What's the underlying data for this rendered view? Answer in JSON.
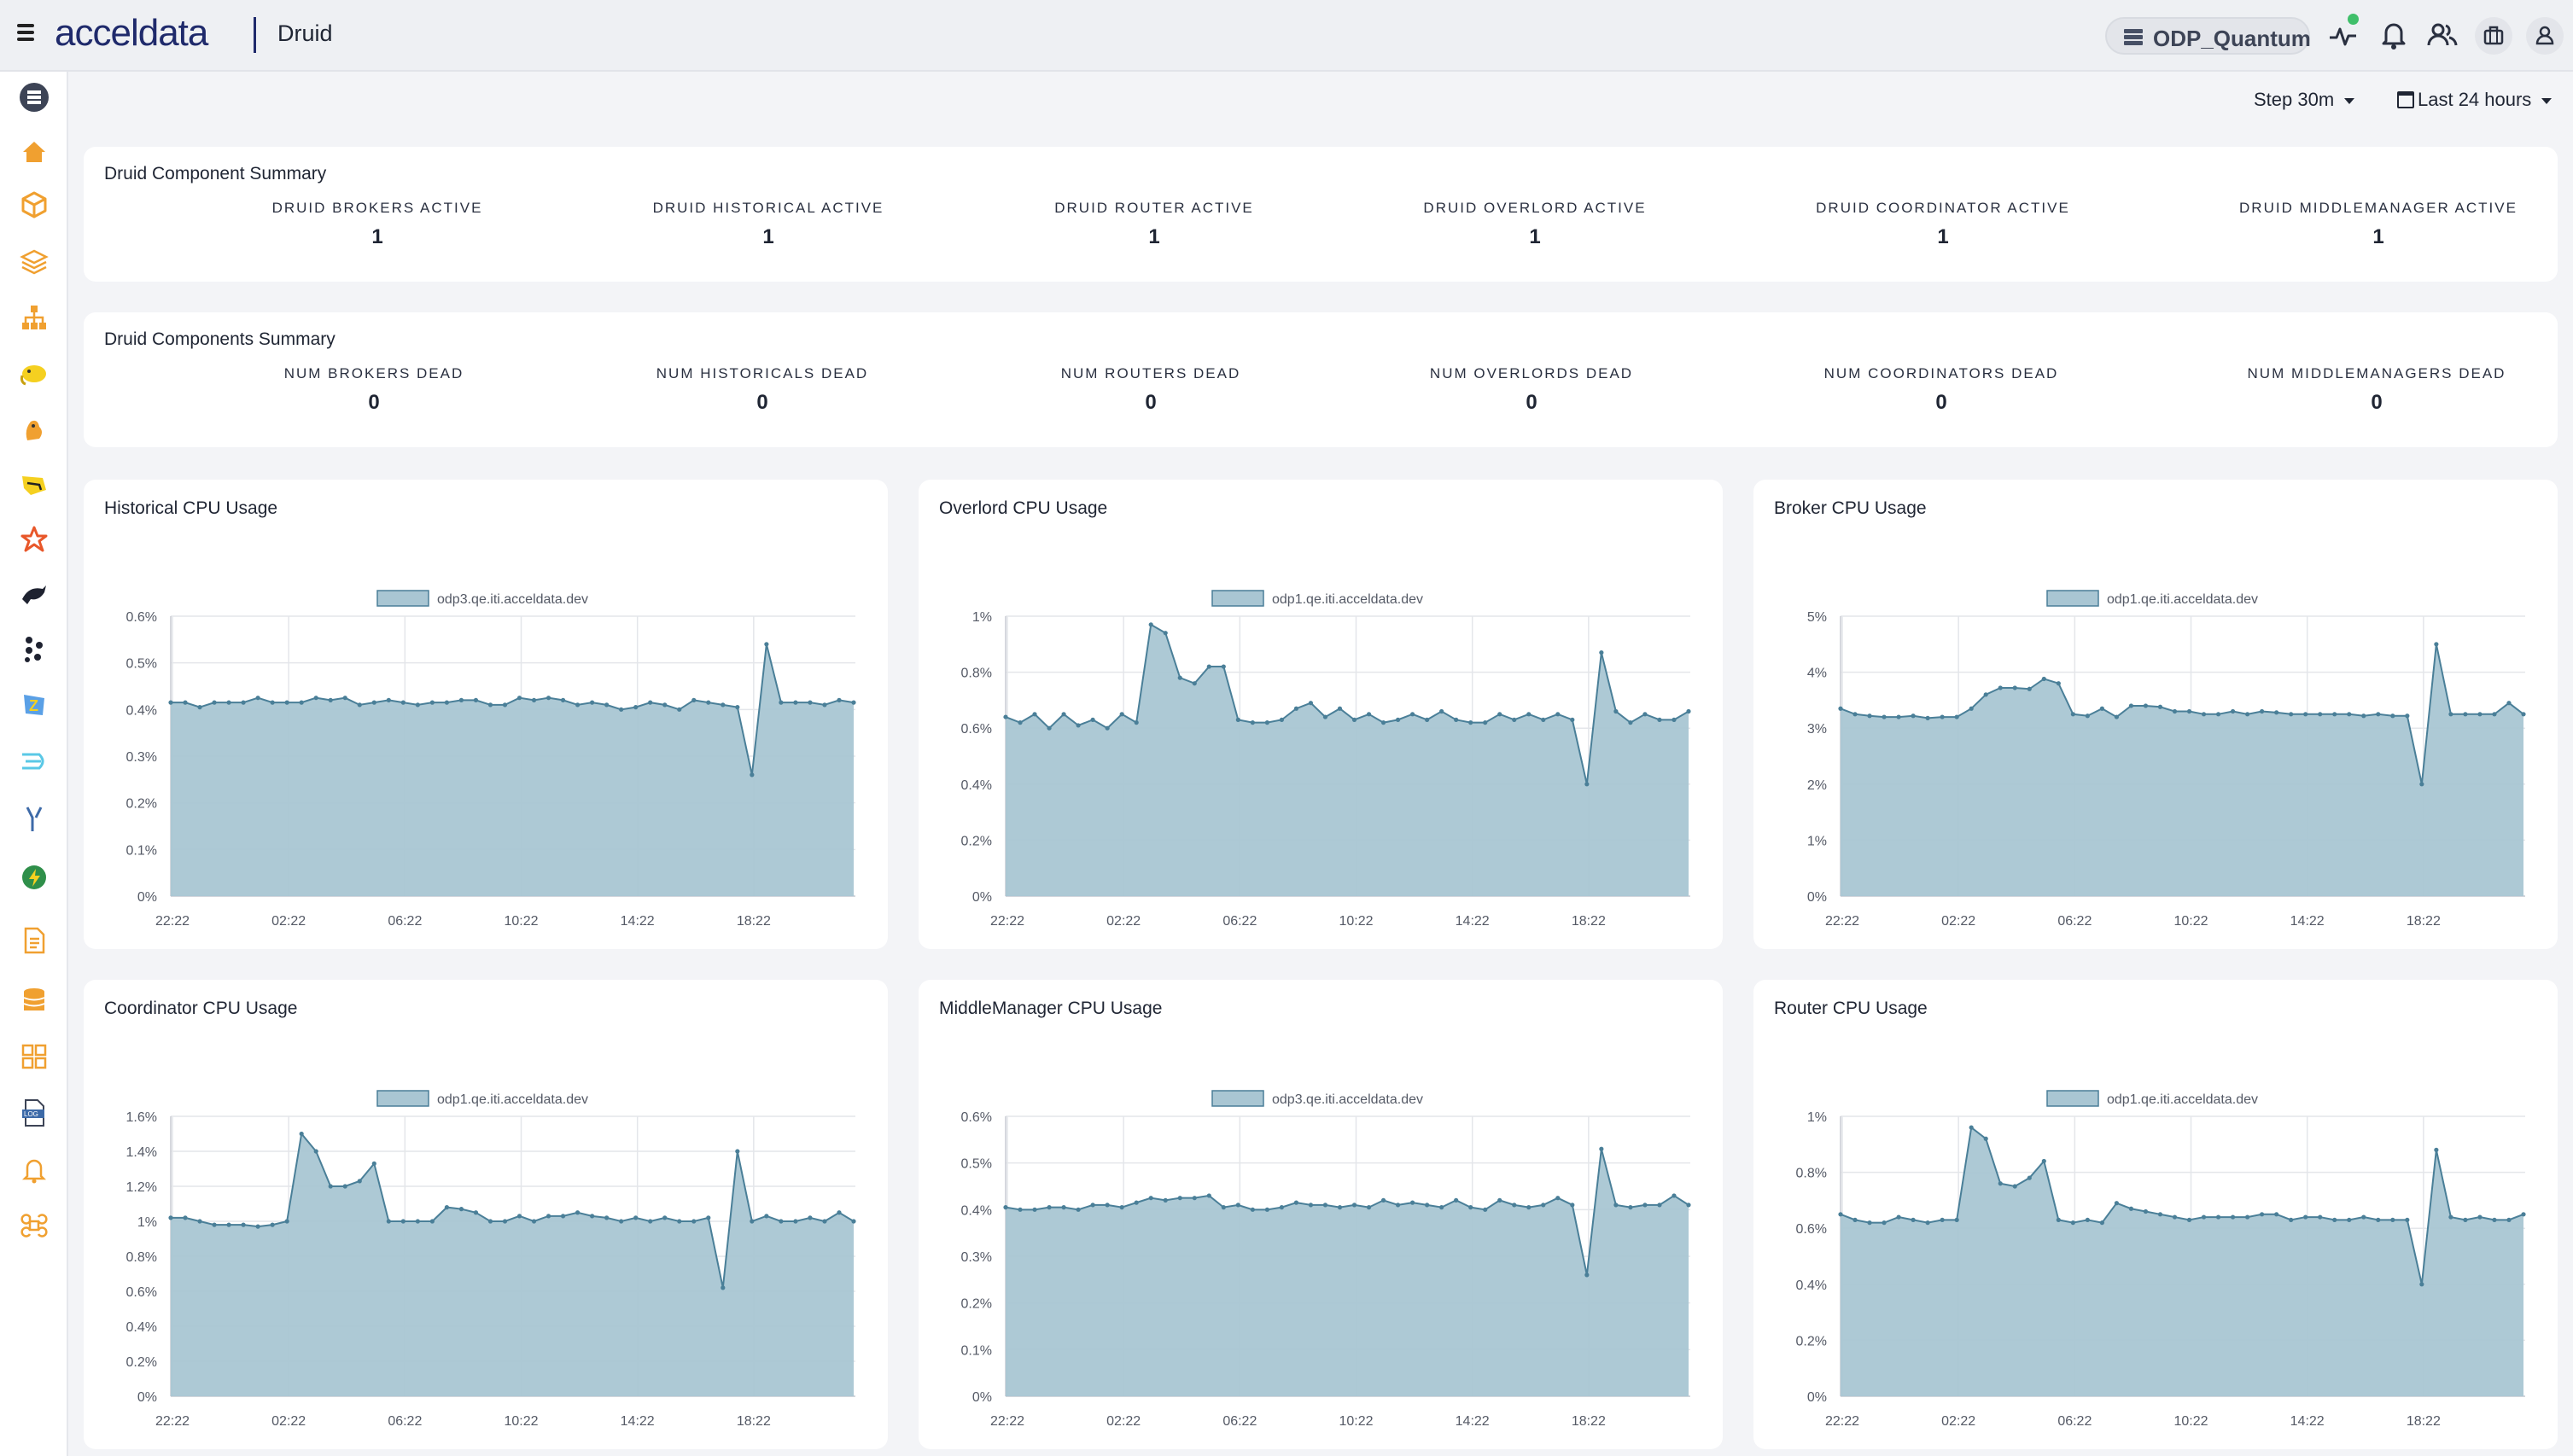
{
  "header": {
    "logo": "acceldata",
    "app_title": "Druid",
    "cluster_name": "ODP_Quantum"
  },
  "toolbar": {
    "step_label": "Step 30m",
    "range_label": "Last 24 hours"
  },
  "component_summary": {
    "title": "Druid Component Summary",
    "stats": [
      {
        "label": "DRUID BROKERS ACTIVE",
        "value": "1"
      },
      {
        "label": "DRUID HISTORICAL ACTIVE",
        "value": "1"
      },
      {
        "label": "DRUID ROUTER ACTIVE",
        "value": "1"
      },
      {
        "label": "DRUID OVERLORD ACTIVE",
        "value": "1"
      },
      {
        "label": "DRUID COORDINATOR ACTIVE",
        "value": "1"
      },
      {
        "label": "DRUID MIDDLEMANAGER ACTIVE",
        "value": "1"
      }
    ]
  },
  "components_dead": {
    "title": "Druid Components Summary",
    "stats": [
      {
        "label": "NUM BROKERS DEAD",
        "value": "0"
      },
      {
        "label": "NUM HISTORICALS DEAD",
        "value": "0"
      },
      {
        "label": "NUM ROUTERS DEAD",
        "value": "0"
      },
      {
        "label": "NUM OVERLORDS DEAD",
        "value": "0"
      },
      {
        "label": "NUM COORDINATORS DEAD",
        "value": "0"
      },
      {
        "label": "NUM MIDDLEMANAGERS DEAD",
        "value": "0"
      }
    ]
  },
  "colors": {
    "area_fill": "#a9c6d3",
    "line": "#4a7f98",
    "accent_orange": "#f0a030",
    "logo_navy": "#1f2a6b"
  },
  "chart_data": [
    {
      "type": "area",
      "title": "Historical CPU Usage",
      "x_ticks": [
        "22:22",
        "02:22",
        "06:22",
        "10:22",
        "14:22",
        "18:22"
      ],
      "y_ticks": [
        "0%",
        "0.1%",
        "0.2%",
        "0.3%",
        "0.4%",
        "0.5%",
        "0.6%"
      ],
      "ylim": [
        0,
        0.6
      ],
      "series": [
        {
          "name": "odp3.qe.iti.acceldata.dev",
          "values": [
            0.415,
            0.415,
            0.405,
            0.415,
            0.415,
            0.415,
            0.425,
            0.415,
            0.415,
            0.415,
            0.425,
            0.42,
            0.425,
            0.41,
            0.415,
            0.42,
            0.415,
            0.41,
            0.415,
            0.415,
            0.42,
            0.42,
            0.41,
            0.41,
            0.425,
            0.42,
            0.425,
            0.42,
            0.41,
            0.415,
            0.41,
            0.4,
            0.405,
            0.415,
            0.41,
            0.4,
            0.42,
            0.415,
            0.41,
            0.405,
            0.26,
            0.54,
            0.415,
            0.415,
            0.415,
            0.41,
            0.42,
            0.415
          ]
        }
      ]
    },
    {
      "type": "area",
      "title": "Overlord CPU Usage",
      "x_ticks": [
        "22:22",
        "02:22",
        "06:22",
        "10:22",
        "14:22",
        "18:22"
      ],
      "y_ticks": [
        "0%",
        "0.2%",
        "0.4%",
        "0.6%",
        "0.8%",
        "1%"
      ],
      "ylim": [
        0,
        1.0
      ],
      "series": [
        {
          "name": "odp1.qe.iti.acceldata.dev",
          "values": [
            0.64,
            0.62,
            0.65,
            0.6,
            0.65,
            0.61,
            0.63,
            0.6,
            0.65,
            0.62,
            0.97,
            0.94,
            0.78,
            0.76,
            0.82,
            0.82,
            0.63,
            0.62,
            0.62,
            0.63,
            0.67,
            0.69,
            0.64,
            0.67,
            0.63,
            0.65,
            0.62,
            0.63,
            0.65,
            0.63,
            0.66,
            0.63,
            0.62,
            0.62,
            0.65,
            0.63,
            0.65,
            0.63,
            0.65,
            0.63,
            0.4,
            0.87,
            0.66,
            0.62,
            0.65,
            0.63,
            0.63,
            0.66
          ]
        }
      ]
    },
    {
      "type": "area",
      "title": "Broker CPU Usage",
      "x_ticks": [
        "22:22",
        "02:22",
        "06:22",
        "10:22",
        "14:22",
        "18:22"
      ],
      "y_ticks": [
        "0%",
        "1%",
        "2%",
        "3%",
        "4%",
        "5%"
      ],
      "ylim": [
        0,
        5
      ],
      "series": [
        {
          "name": "odp1.qe.iti.acceldata.dev",
          "values": [
            3.35,
            3.25,
            3.22,
            3.2,
            3.2,
            3.22,
            3.18,
            3.2,
            3.2,
            3.35,
            3.6,
            3.72,
            3.72,
            3.7,
            3.88,
            3.8,
            3.25,
            3.22,
            3.35,
            3.2,
            3.4,
            3.4,
            3.38,
            3.3,
            3.3,
            3.25,
            3.25,
            3.3,
            3.25,
            3.3,
            3.28,
            3.25,
            3.25,
            3.25,
            3.25,
            3.25,
            3.22,
            3.25,
            3.22,
            3.22,
            2.0,
            4.5,
            3.25,
            3.25,
            3.25,
            3.25,
            3.45,
            3.25
          ]
        }
      ]
    },
    {
      "type": "area",
      "title": "Coordinator CPU Usage",
      "x_ticks": [
        "22:22",
        "02:22",
        "06:22",
        "10:22",
        "14:22",
        "18:22"
      ],
      "y_ticks": [
        "0%",
        "0.2%",
        "0.4%",
        "0.6%",
        "0.8%",
        "1%",
        "1.2%",
        "1.4%",
        "1.6%"
      ],
      "ylim": [
        0,
        1.6
      ],
      "series": [
        {
          "name": "odp1.qe.iti.acceldata.dev",
          "values": [
            1.02,
            1.02,
            1.0,
            0.98,
            0.98,
            0.98,
            0.97,
            0.98,
            1.0,
            1.5,
            1.4,
            1.2,
            1.2,
            1.23,
            1.33,
            1.0,
            1.0,
            1.0,
            1.0,
            1.08,
            1.07,
            1.05,
            1.0,
            1.0,
            1.03,
            1.0,
            1.03,
            1.03,
            1.05,
            1.03,
            1.02,
            1.0,
            1.02,
            1.0,
            1.02,
            1.0,
            1.0,
            1.02,
            0.62,
            1.4,
            1.0,
            1.03,
            1.0,
            1.0,
            1.02,
            1.0,
            1.05,
            1.0
          ]
        }
      ]
    },
    {
      "type": "area",
      "title": "MiddleManager CPU Usage",
      "x_ticks": [
        "22:22",
        "02:22",
        "06:22",
        "10:22",
        "14:22",
        "18:22"
      ],
      "y_ticks": [
        "0%",
        "0.1%",
        "0.2%",
        "0.3%",
        "0.4%",
        "0.5%",
        "0.6%"
      ],
      "ylim": [
        0,
        0.6
      ],
      "series": [
        {
          "name": "odp3.qe.iti.acceldata.dev",
          "values": [
            0.405,
            0.4,
            0.4,
            0.405,
            0.405,
            0.4,
            0.41,
            0.41,
            0.405,
            0.415,
            0.425,
            0.42,
            0.425,
            0.425,
            0.43,
            0.405,
            0.41,
            0.4,
            0.4,
            0.405,
            0.415,
            0.41,
            0.41,
            0.405,
            0.41,
            0.405,
            0.42,
            0.41,
            0.415,
            0.41,
            0.405,
            0.42,
            0.405,
            0.4,
            0.42,
            0.41,
            0.405,
            0.41,
            0.425,
            0.41,
            0.26,
            0.53,
            0.41,
            0.405,
            0.41,
            0.41,
            0.43,
            0.41
          ]
        }
      ]
    },
    {
      "type": "area",
      "title": "Router CPU Usage",
      "x_ticks": [
        "22:22",
        "02:22",
        "06:22",
        "10:22",
        "14:22",
        "18:22"
      ],
      "y_ticks": [
        "0%",
        "0.2%",
        "0.4%",
        "0.6%",
        "0.8%",
        "1%"
      ],
      "ylim": [
        0,
        1.0
      ],
      "series": [
        {
          "name": "odp1.qe.iti.acceldata.dev",
          "values": [
            0.65,
            0.63,
            0.62,
            0.62,
            0.64,
            0.63,
            0.62,
            0.63,
            0.63,
            0.96,
            0.92,
            0.76,
            0.75,
            0.78,
            0.84,
            0.63,
            0.62,
            0.63,
            0.62,
            0.69,
            0.67,
            0.66,
            0.65,
            0.64,
            0.63,
            0.64,
            0.64,
            0.64,
            0.64,
            0.65,
            0.65,
            0.63,
            0.64,
            0.64,
            0.63,
            0.63,
            0.64,
            0.63,
            0.63,
            0.63,
            0.4,
            0.88,
            0.64,
            0.63,
            0.64,
            0.63,
            0.63,
            0.65
          ]
        }
      ]
    }
  ],
  "sidebar_icons": [
    "database-icon",
    "home-icon",
    "cube-icon",
    "layers-icon",
    "hierarchy-icon",
    "hadoop-elephant-icon",
    "hive-icon",
    "kafka-icon",
    "spark-icon",
    "druid-icon",
    "nifi-icon",
    "zookeeper-icon",
    "streams-icon",
    "tools-icon",
    "power-icon",
    "document-icon",
    "storage-icon",
    "grid-icon",
    "log-icon",
    "bell-icon",
    "command-icon"
  ],
  "header_icons": [
    "pulse-icon",
    "notification-bell-icon",
    "users-icon",
    "briefcase-icon",
    "profile-icon"
  ]
}
